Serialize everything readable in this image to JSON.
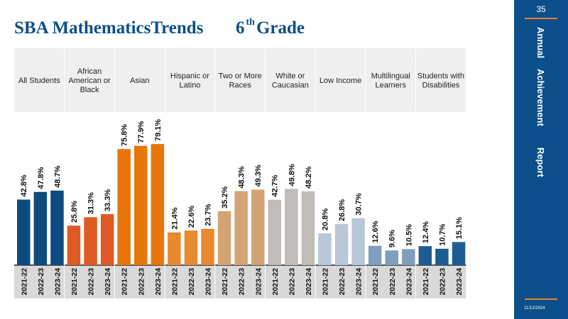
{
  "header": {
    "title_main": "SBA MathematicsTrends",
    "grade_num": "6",
    "grade_sup": "th",
    "grade_word": "Grade"
  },
  "sidebar": {
    "page_number": "35",
    "labels": [
      "Annual",
      "Achievement",
      "Report"
    ],
    "date": "11/12/2024"
  },
  "colors": {
    "brand": "#0d4f8b",
    "accent": "#e8832a"
  },
  "chart_data": {
    "type": "bar",
    "x_labels": [
      "2021-22",
      "2022-23",
      "2023-24"
    ],
    "ylim": [
      0,
      100
    ],
    "groups": [
      {
        "name": "All Students",
        "lines": [
          "All Students"
        ],
        "color": "#0d4a7e",
        "values": [
          42.8,
          47.8,
          48.7
        ]
      },
      {
        "name": "African American or Black",
        "lines": [
          "African",
          "American or",
          "Black"
        ],
        "color": "#e05a24",
        "values": [
          25.8,
          31.3,
          33.3
        ]
      },
      {
        "name": "Asian",
        "lines": [
          "Asian"
        ],
        "color": "#e8760a",
        "values": [
          75.8,
          77.9,
          79.1
        ]
      },
      {
        "name": "Hispanic or Latino",
        "lines": [
          "Hispanic or",
          "Latino"
        ],
        "color": "#e8892f",
        "values": [
          21.4,
          22.6,
          23.7
        ]
      },
      {
        "name": "Two or More Races",
        "lines": [
          "Two or More",
          "Races"
        ],
        "color": "#d4a373",
        "values": [
          35.2,
          48.3,
          49.3
        ]
      },
      {
        "name": "White or Caucasian",
        "lines": [
          "White or",
          "Caucasian"
        ],
        "color": "#c0bcb8",
        "values": [
          42.7,
          49.8,
          48.2
        ]
      },
      {
        "name": "Low Income",
        "lines": [
          "Low Income"
        ],
        "color": "#b9c8d6",
        "values": [
          20.8,
          26.8,
          30.7
        ]
      },
      {
        "name": "Multilingual Learners",
        "lines": [
          "Multilingual",
          "Learners"
        ],
        "color": "#7f9fbd",
        "values": [
          12.6,
          9.6,
          10.5
        ]
      },
      {
        "name": "Students with Disabilities",
        "lines": [
          "Students with",
          "Disabilities"
        ],
        "color": "#1e5d93",
        "values": [
          12.4,
          10.7,
          15.1
        ]
      }
    ]
  }
}
